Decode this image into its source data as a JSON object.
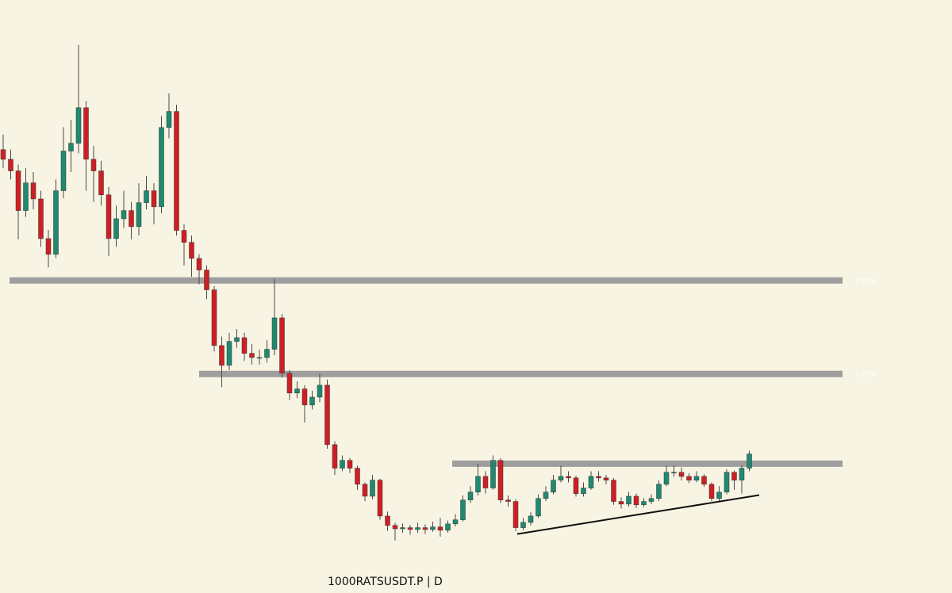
{
  "chart_data": {
    "type": "candlestick",
    "footer": "1000RATSUSDT.P  |  D",
    "up_color": "#1f8a70",
    "down_color": "#cf1f26",
    "wick_color": "#4a4a4a",
    "level_color": "#9e9e9e",
    "ylim": [
      0,
      0.159
    ],
    "levels": [
      0.084,
      0.059
    ],
    "resistance": 0.035,
    "trendline": [
      0.0162,
      0.0266
    ],
    "open": [
      0.119,
      0.1164,
      0.1133,
      0.1027,
      0.1101,
      0.1058,
      0.0952,
      0.091,
      0.108,
      0.1186,
      0.1207,
      0.1302,
      0.1164,
      0.1133,
      0.1069,
      0.0952,
      0.1005,
      0.1027,
      0.0984,
      0.1048,
      0.108,
      0.1037,
      0.1249,
      0.1292,
      0.0974,
      0.0942,
      0.0899,
      0.0868,
      0.0815,
      0.0666,
      0.0613,
      0.0677,
      0.0687,
      0.0645,
      0.0634,
      0.0634,
      0.0656,
      0.074,
      0.0592,
      0.0539,
      0.055,
      0.0507,
      0.0528,
      0.056,
      0.0401,
      0.0338,
      0.0359,
      0.0338,
      0.0295,
      0.0263,
      0.0306,
      0.021,
      0.0185,
      0.0176,
      0.0179,
      0.0174,
      0.0179,
      0.0174,
      0.0181,
      0.0172,
      0.0189,
      0.02,
      0.0253,
      0.0274,
      0.0316,
      0.0285,
      0.0359,
      0.0253,
      0.0249,
      0.0179,
      0.0193,
      0.021,
      0.0257,
      0.0274,
      0.0306,
      0.0316,
      0.0312,
      0.027,
      0.0285,
      0.0316,
      0.0312,
      0.0306,
      0.0249,
      0.0242,
      0.0263,
      0.024,
      0.0249,
      0.0257,
      0.0295,
      0.0327,
      0.0327,
      0.0316,
      0.0306,
      0.0316,
      0.0295,
      0.0257,
      0.0274,
      0.0327,
      0.0306,
      0.0338
    ],
    "high": [
      0.123,
      0.119,
      0.115,
      0.114,
      0.113,
      0.108,
      0.0975,
      0.111,
      0.125,
      0.127,
      0.147,
      0.132,
      0.12,
      0.116,
      0.109,
      0.104,
      0.108,
      0.105,
      0.11,
      0.112,
      0.11,
      0.128,
      0.134,
      0.131,
      0.099,
      0.096,
      0.091,
      0.088,
      0.0825,
      0.069,
      0.07,
      0.071,
      0.07,
      0.067,
      0.0655,
      0.068,
      0.0844,
      0.075,
      0.06,
      0.057,
      0.056,
      0.0545,
      0.059,
      0.0575,
      0.041,
      0.0372,
      0.0365,
      0.0345,
      0.03,
      0.032,
      0.031,
      0.0222,
      0.0192,
      0.019,
      0.0186,
      0.0192,
      0.0188,
      0.0195,
      0.0205,
      0.0198,
      0.0215,
      0.0265,
      0.029,
      0.035,
      0.033,
      0.0372,
      0.0365,
      0.0265,
      0.0255,
      0.0205,
      0.022,
      0.0268,
      0.029,
      0.032,
      0.0345,
      0.033,
      0.0318,
      0.03,
      0.033,
      0.033,
      0.032,
      0.0312,
      0.026,
      0.0275,
      0.027,
      0.0258,
      0.0268,
      0.0305,
      0.0345,
      0.0345,
      0.034,
      0.0325,
      0.033,
      0.0322,
      0.03,
      0.029,
      0.0335,
      0.0332,
      0.0345,
      0.0385
    ],
    "low": [
      0.114,
      0.111,
      0.095,
      0.101,
      0.103,
      0.093,
      0.0875,
      0.09,
      0.106,
      0.113,
      0.118,
      0.108,
      0.105,
      0.104,
      0.0905,
      0.093,
      0.098,
      0.095,
      0.096,
      0.103,
      0.099,
      0.102,
      0.122,
      0.096,
      0.088,
      0.085,
      0.083,
      0.079,
      0.065,
      0.0555,
      0.06,
      0.066,
      0.0625,
      0.0615,
      0.0615,
      0.062,
      0.064,
      0.058,
      0.052,
      0.0525,
      0.046,
      0.0495,
      0.0515,
      0.039,
      0.032,
      0.033,
      0.0325,
      0.028,
      0.025,
      0.0255,
      0.02,
      0.017,
      0.0145,
      0.0165,
      0.016,
      0.0165,
      0.0162,
      0.0168,
      0.0155,
      0.0166,
      0.0182,
      0.0195,
      0.0245,
      0.0265,
      0.027,
      0.028,
      0.0245,
      0.0235,
      0.017,
      0.0172,
      0.0185,
      0.0205,
      0.025,
      0.0268,
      0.03,
      0.03,
      0.0262,
      0.0262,
      0.028,
      0.0302,
      0.0295,
      0.024,
      0.023,
      0.0235,
      0.0232,
      0.0234,
      0.0242,
      0.025,
      0.029,
      0.0315,
      0.0305,
      0.0298,
      0.03,
      0.0288,
      0.025,
      0.025,
      0.0268,
      0.028,
      0.027,
      0.033
    ],
    "close": [
      0.1164,
      0.1133,
      0.1027,
      0.1101,
      0.1058,
      0.0952,
      0.091,
      0.108,
      0.1186,
      0.1207,
      0.1302,
      0.1164,
      0.1133,
      0.1069,
      0.0952,
      0.1005,
      0.1027,
      0.0984,
      0.1048,
      0.108,
      0.1037,
      0.1249,
      0.1292,
      0.0974,
      0.0942,
      0.0899,
      0.0868,
      0.0815,
      0.0666,
      0.0613,
      0.0677,
      0.0687,
      0.0645,
      0.0634,
      0.0634,
      0.0656,
      0.074,
      0.0592,
      0.0539,
      0.055,
      0.0507,
      0.0528,
      0.056,
      0.0401,
      0.0338,
      0.0359,
      0.0338,
      0.0295,
      0.0263,
      0.0306,
      0.021,
      0.0185,
      0.0176,
      0.0179,
      0.0174,
      0.0179,
      0.0174,
      0.0181,
      0.0172,
      0.0189,
      0.02,
      0.0253,
      0.0274,
      0.0316,
      0.0285,
      0.0359,
      0.0253,
      0.0249,
      0.0179,
      0.0193,
      0.021,
      0.0257,
      0.0274,
      0.0306,
      0.0316,
      0.0312,
      0.027,
      0.0285,
      0.0316,
      0.0312,
      0.0306,
      0.0249,
      0.0242,
      0.0263,
      0.024,
      0.0249,
      0.0257,
      0.0295,
      0.0327,
      0.0327,
      0.0316,
      0.0306,
      0.0316,
      0.0295,
      0.0257,
      0.0274,
      0.0327,
      0.0306,
      0.0338,
      0.0376
    ]
  }
}
